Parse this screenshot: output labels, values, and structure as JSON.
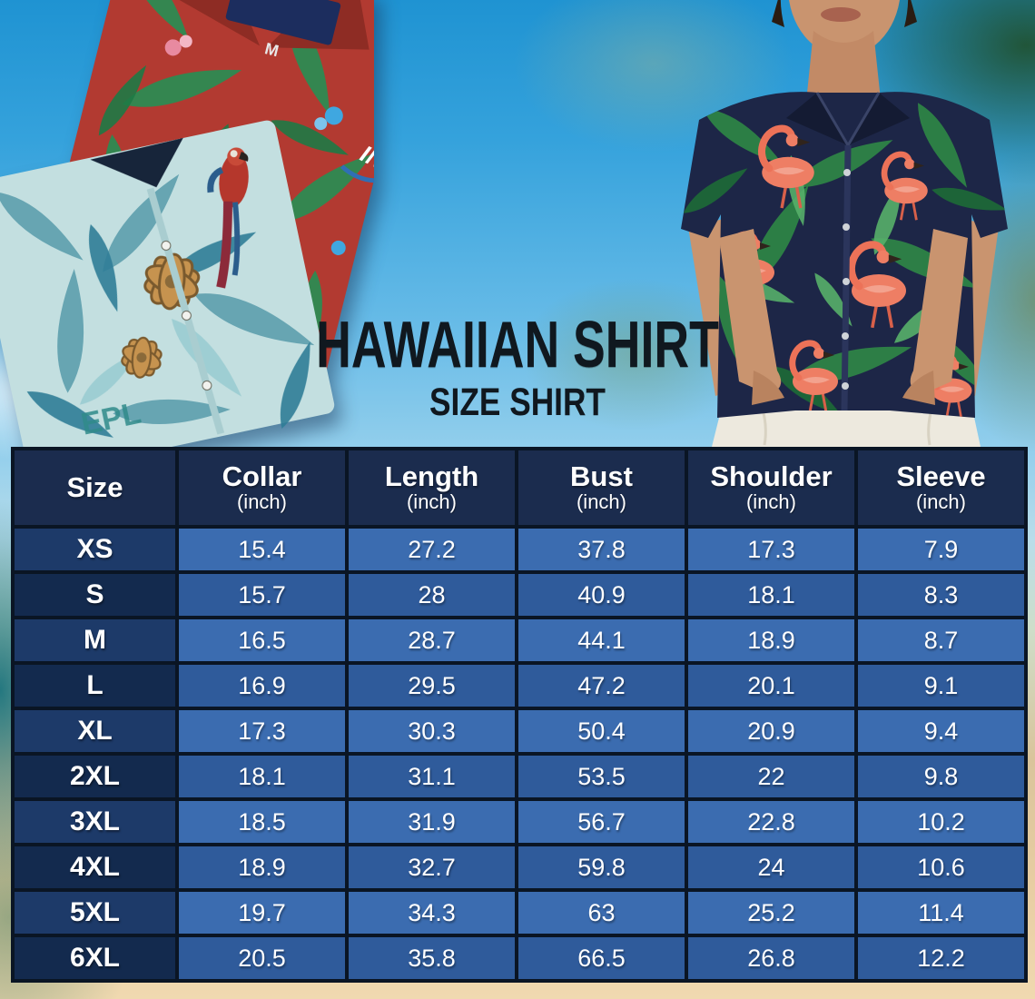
{
  "title": {
    "main": "HAWAIIAN SHIRT",
    "sub": "SIZE SHIRT"
  },
  "hero": {
    "left_photo": "two folded hawaiian shirts (red tropical, teal hibiscus-parrot)",
    "right_photo": "man wearing navy flamingo-leaf hawaiian shirt, hands in pockets",
    "red_shirt_size_tag": "M",
    "red_shirt_sleeve_logo": "IN",
    "teal_shirt_print_text": "EPL"
  },
  "chart_data": {
    "type": "table",
    "title": "HAWAIIAN SHIRT SIZE SHIRT",
    "columns": [
      {
        "label": "Size",
        "unit": ""
      },
      {
        "label": "Collar",
        "unit": "(inch)"
      },
      {
        "label": "Length",
        "unit": "(inch)"
      },
      {
        "label": "Bust",
        "unit": "(inch)"
      },
      {
        "label": "Shoulder",
        "unit": "(inch)"
      },
      {
        "label": "Sleeve",
        "unit": "(inch)"
      }
    ],
    "rows": [
      {
        "size": "XS",
        "values": [
          "15.4",
          "27.2",
          "37.8",
          "17.3",
          "7.9"
        ]
      },
      {
        "size": "S",
        "values": [
          "15.7",
          "28",
          "40.9",
          "18.1",
          "8.3"
        ]
      },
      {
        "size": "M",
        "values": [
          "16.5",
          "28.7",
          "44.1",
          "18.9",
          "8.7"
        ]
      },
      {
        "size": "L",
        "values": [
          "16.9",
          "29.5",
          "47.2",
          "20.1",
          "9.1"
        ]
      },
      {
        "size": "XL",
        "values": [
          "17.3",
          "30.3",
          "50.4",
          "20.9",
          "9.4"
        ]
      },
      {
        "size": "2XL",
        "values": [
          "18.1",
          "31.1",
          "53.5",
          "22",
          "9.8"
        ]
      },
      {
        "size": "3XL",
        "values": [
          "18.5",
          "31.9",
          "56.7",
          "22.8",
          "10.2"
        ]
      },
      {
        "size": "4XL",
        "values": [
          "18.9",
          "32.7",
          "59.8",
          "24",
          "10.6"
        ]
      },
      {
        "size": "5XL",
        "values": [
          "19.7",
          "34.3",
          "63",
          "25.2",
          "11.4"
        ]
      },
      {
        "size": "6XL",
        "values": [
          "20.5",
          "35.8",
          "66.5",
          "26.8",
          "12.2"
        ]
      }
    ]
  },
  "colors": {
    "header_bg": "#1b2c4e",
    "row_light": "#3b6cb0",
    "row_dark": "#2f5b9b",
    "size_col_light": "#1d3a69",
    "size_col_dark": "#132a4e",
    "table_border": "#0a1524",
    "table_text": "#ffffff",
    "title_text": "#10181f",
    "sky": "#1f93d2",
    "sand": "#f0d9b0",
    "shirt_red": "#b23a31",
    "shirt_teal": "#c3dfe0",
    "shirt_navy": "#1d2647",
    "leaf_green": "#2e8346",
    "flamingo_pink": "#ee7e64"
  }
}
